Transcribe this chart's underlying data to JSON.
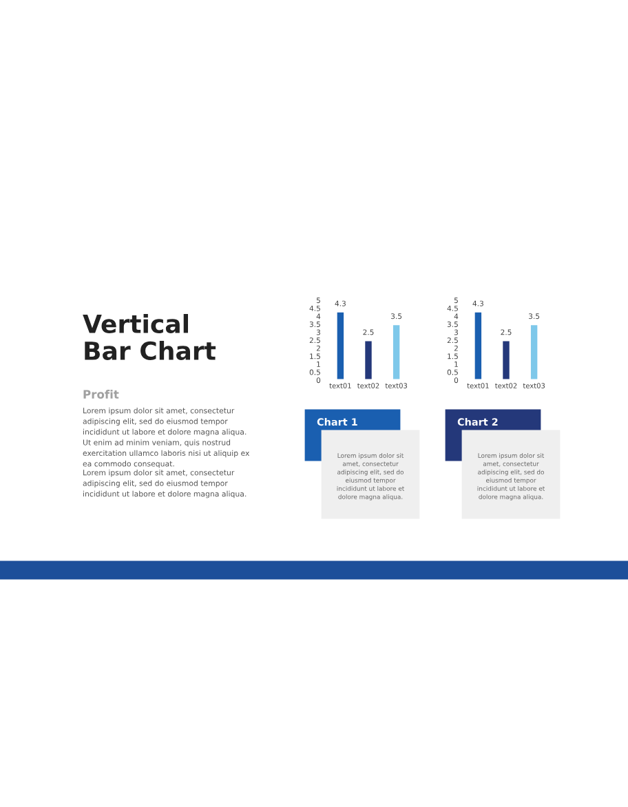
{
  "chart_data": [
    {
      "type": "other",
      "title": "Vertical\nBar Chart",
      "subtitle": "Profit",
      "annotations": [
        "Lorem ipsum dolor sit amet, consectetur\nadipiscing elit, sed do eiusmod tempor\nincididunt ut labore et dolore magna aliqua.\nUt enim ad minim veniam, quis nostrud\nexercitation ullamco laboris nisi ut aliquip ex\nea commodo consequat.",
        "Lorem ipsum dolor sit amet, consectetur\nadipiscing elit, sed do eiusmod tempor\nincididunt ut labore et dolore magna aliqua."
      ]
    },
    {
      "type": "bar",
      "title": "Chart 1",
      "categories": [
        "text01",
        "text02",
        "text03"
      ],
      "values": [
        4.3,
        2.5,
        3.5
      ],
      "colors": [
        "#1a5fb0",
        "#24387a",
        "#7ec8ea"
      ],
      "ylim": [
        0,
        5
      ],
      "yticks": [
        0,
        0.5,
        1,
        1.5,
        2,
        2.5,
        3,
        3.5,
        4,
        4.5,
        5
      ],
      "data_labels": true,
      "grid": false,
      "legend": false,
      "annotations": [
        "Lorem ipsum dolor sit\namet, consectetur\nadipiscing elit, sed do\neiusmod tempor\nincididunt ut labore et\ndolore magna aliqua."
      ]
    },
    {
      "type": "bar",
      "title": "Chart 2",
      "categories": [
        "text01",
        "text02",
        "text03"
      ],
      "values": [
        4.3,
        2.5,
        3.5
      ],
      "colors": [
        "#1a5fb0",
        "#24387a",
        "#7ec8ea"
      ],
      "ylim": [
        0,
        5
      ],
      "yticks": [
        0,
        0.5,
        1,
        1.5,
        2,
        2.5,
        3,
        3.5,
        4,
        4.5,
        5
      ],
      "data_labels": true,
      "grid": false,
      "legend": false,
      "annotations": [
        "Lorem ipsum dolor sit\namet, consectetur\nadipiscing elit, sed do\neiusmod tempor\nincididunt ut labore et\ndolore magna aliqua."
      ]
    }
  ]
}
